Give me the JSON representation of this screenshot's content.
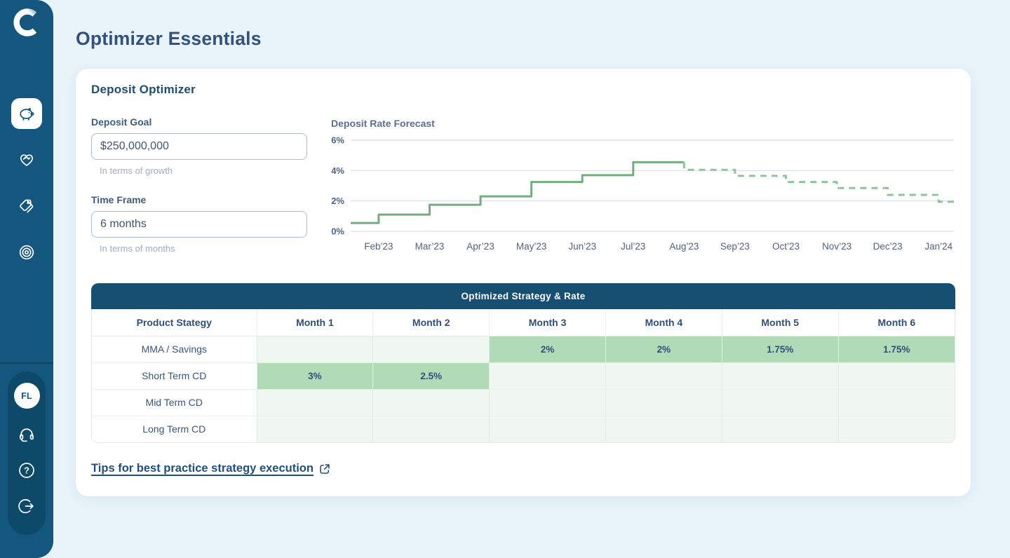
{
  "colors": {
    "page_bg": "#E8F3FA",
    "sidebar_bg": "#15567E",
    "sidebar_pill_bg": "#0D4A6A",
    "table_band_navy": "#174F73",
    "line_solid_green": "#74AE80",
    "line_dashed_green": "#8CC799",
    "cell_highlight_green": "#B1DAB6",
    "cell_light_green": "#EFF7F0"
  },
  "header": {
    "title": "Optimizer Essentials"
  },
  "sidebar": {
    "logo_icon": "c-logo-icon",
    "nav": [
      {
        "icon": "piggy-bank-icon",
        "active": true
      },
      {
        "icon": "heart-care-icon",
        "active": false
      },
      {
        "icon": "tags-icon",
        "active": false
      },
      {
        "icon": "target-icon",
        "active": false
      }
    ],
    "user": {
      "avatar_initials": "FL"
    },
    "bottom_icons": [
      "headset-icon",
      "help-icon",
      "logout-icon"
    ]
  },
  "card": {
    "title": "Deposit Optimizer",
    "fields": [
      {
        "label": "Deposit Goal",
        "value": "$250,000,000",
        "helper": "In terms of growth"
      },
      {
        "label": "Time Frame",
        "value": "6 months",
        "helper": "In terms of months"
      }
    ],
    "link": {
      "label": "Tips for best practice strategy execution",
      "icon": "external-link-icon"
    }
  },
  "chart_data": {
    "type": "line",
    "title": "Deposit Rate Forecast",
    "step": "after",
    "grid": true,
    "ylim": [
      0,
      6
    ],
    "x_range": [
      0.45,
      12.3
    ],
    "y_ticks": [
      {
        "v": 6,
        "label": "6%"
      },
      {
        "v": 4,
        "label": "4%"
      },
      {
        "v": 2,
        "label": "2%"
      },
      {
        "v": 0,
        "label": "0%"
      }
    ],
    "x_tick_labels": [
      "Feb’23",
      "Mar’23",
      "Apr’23",
      "May’23",
      "Jun’23",
      "Jul’23",
      "Aug’23",
      "Sep’23",
      "Oct’23",
      "Nov’23",
      "Dec’23",
      "Jan’24"
    ],
    "series": [
      {
        "name": "historical_rate",
        "style": "solid",
        "color": "#74AE80",
        "end_x": 7,
        "points": [
          [
            0.45,
            0.55
          ],
          [
            1,
            1.1
          ],
          [
            2,
            1.75
          ],
          [
            3,
            2.3
          ],
          [
            4,
            3.25
          ],
          [
            5,
            3.7
          ],
          [
            6,
            4.55
          ]
        ]
      },
      {
        "name": "forecast_rate",
        "style": "dashed",
        "color": "#8CC799",
        "start_y": 4.55,
        "end_x": 12.3,
        "points": [
          [
            7,
            4.05
          ],
          [
            8,
            3.65
          ],
          [
            9,
            3.25
          ],
          [
            10,
            2.85
          ],
          [
            11,
            2.4
          ],
          [
            12,
            1.95
          ]
        ]
      }
    ]
  },
  "table": {
    "title": "Optimized Strategy & Rate",
    "columns": [
      "Product Stategy",
      "Month 1",
      "Month 2",
      "Month 3",
      "Month 4",
      "Month 5",
      "Month 6"
    ],
    "rows": [
      {
        "label": "MMA / Savings",
        "cells": [
          "",
          "",
          "2%",
          "2%",
          "1.75%",
          "1.75%"
        ],
        "highlight": [
          false,
          false,
          true,
          true,
          true,
          true
        ]
      },
      {
        "label": "Short Term CD",
        "cells": [
          "3%",
          "2.5%",
          "",
          "",
          "",
          ""
        ],
        "highlight": [
          true,
          true,
          false,
          false,
          false,
          false
        ]
      },
      {
        "label": "Mid Term CD",
        "cells": [
          "",
          "",
          "",
          "",
          "",
          ""
        ],
        "highlight": [
          false,
          false,
          false,
          false,
          false,
          false
        ]
      },
      {
        "label": "Long Term CD",
        "cells": [
          "",
          "",
          "",
          "",
          "",
          ""
        ],
        "highlight": [
          false,
          false,
          false,
          false,
          false,
          false
        ]
      }
    ]
  }
}
